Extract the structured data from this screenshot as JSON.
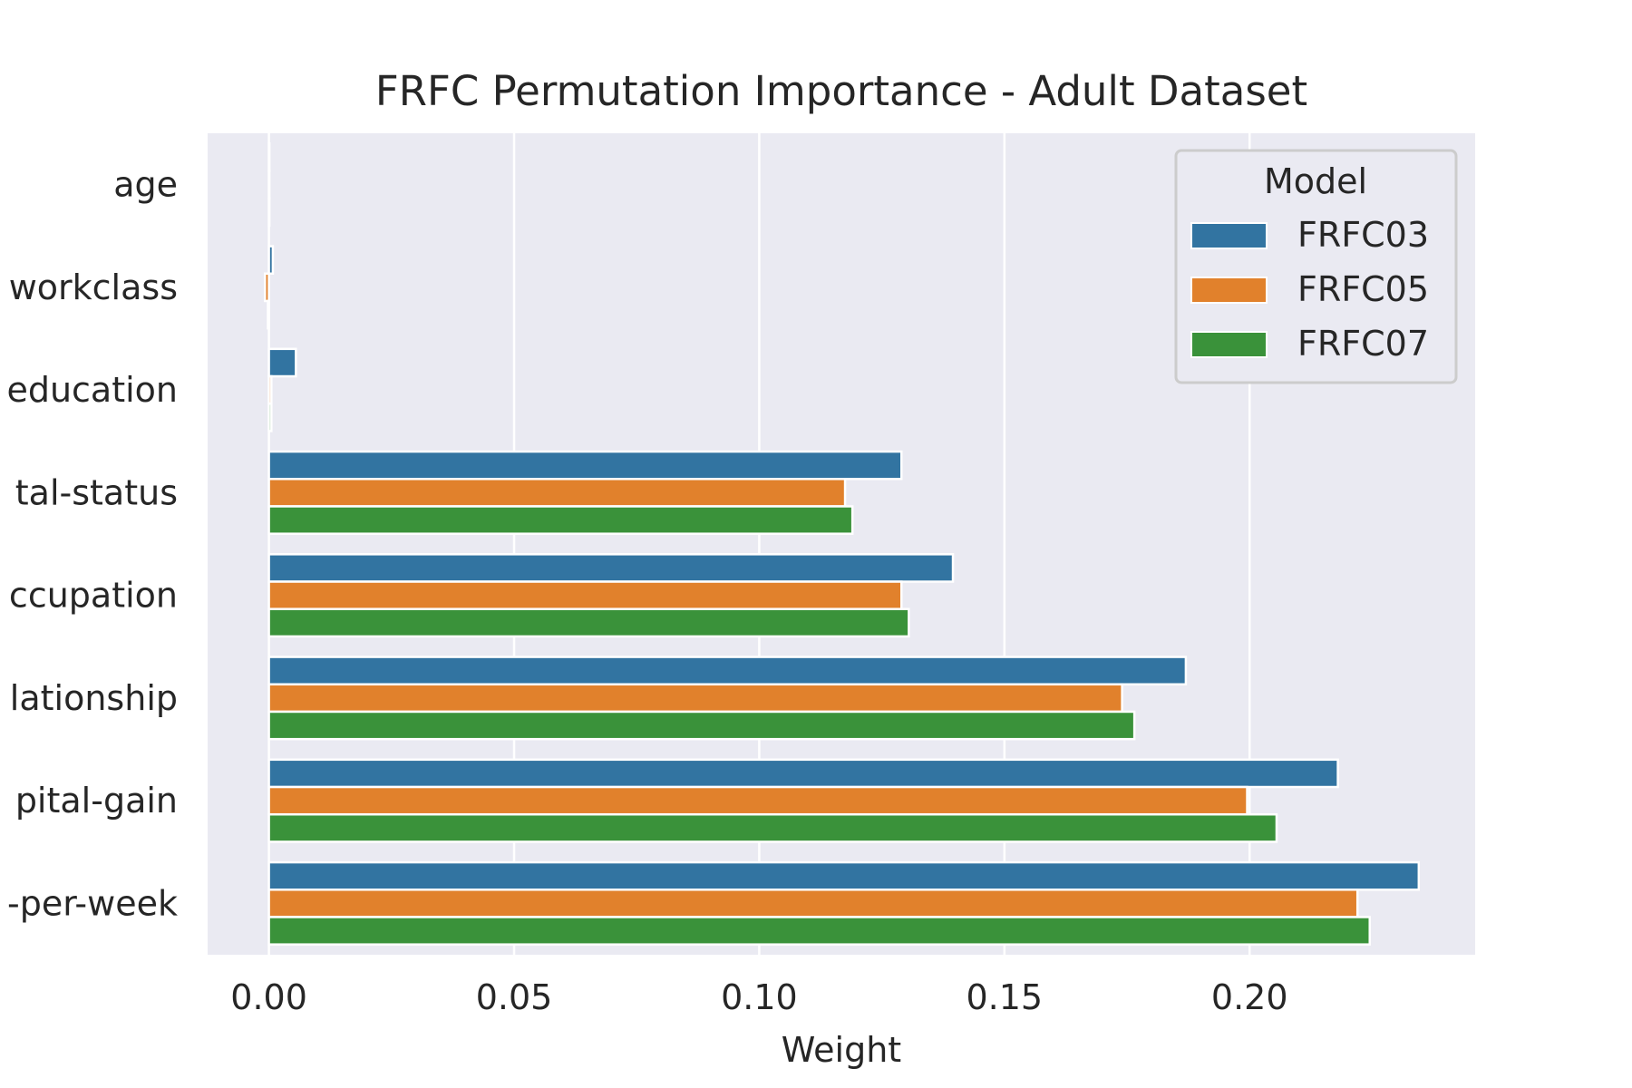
{
  "chart_data": {
    "type": "bar",
    "orientation": "horizontal",
    "title": "FRFC Permutation Importance - Adult Dataset",
    "xlabel": "Weight",
    "ylabel": "",
    "categories": [
      "age",
      "workclass",
      "education",
      "tal-status",
      "ccupation",
      "lationship",
      "pital-gain",
      "-per-week"
    ],
    "series": [
      {
        "name": "FRFC03",
        "color": "#3274a1",
        "values": [
          0.0001,
          0.0008,
          0.0055,
          0.129,
          0.1395,
          0.187,
          0.218,
          0.2345
        ]
      },
      {
        "name": "FRFC05",
        "color": "#e1812c",
        "values": [
          0.0001,
          -0.0008,
          0.0005,
          0.1175,
          0.129,
          0.174,
          0.1995,
          0.222
        ]
      },
      {
        "name": "FRFC07",
        "color": "#3a923a",
        "values": [
          0.0001,
          -0.0002,
          0.0005,
          0.119,
          0.1305,
          0.1765,
          0.2055,
          0.2245
        ]
      }
    ],
    "xlim": [
      -0.0125,
      0.246
    ],
    "xticks": [
      "0.00",
      "0.05",
      "0.10",
      "0.15",
      "0.20"
    ],
    "xtick_values": [
      0,
      0.05,
      0.1,
      0.15,
      0.2
    ],
    "grid": true,
    "background": "#eaeaf2",
    "legend": {
      "title": "Model",
      "placement": "top-right"
    }
  }
}
